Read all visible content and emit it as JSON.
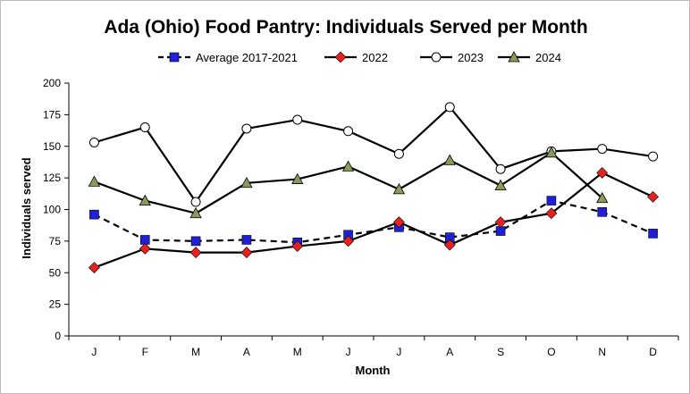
{
  "chart_data": {
    "type": "line",
    "title": "Ada (Ohio) Food Pantry: Individuals Served per Month",
    "xlabel": "Month",
    "ylabel": "Individuals served",
    "categories": [
      "J",
      "F",
      "M",
      "A",
      "M",
      "J",
      "J",
      "A",
      "S",
      "O",
      "N",
      "D"
    ],
    "ylim": [
      0,
      200
    ],
    "yticks": [
      0,
      25,
      50,
      75,
      100,
      125,
      150,
      175,
      200
    ],
    "grid": false,
    "legend_position": "top",
    "series": [
      {
        "name": "Average 2017-2021",
        "marker": "square",
        "color": "#1f1fd6",
        "line_style": "dashed",
        "values": [
          96,
          76,
          75,
          76,
          74,
          80,
          86,
          78,
          83,
          107,
          98,
          81
        ]
      },
      {
        "name": "2022",
        "marker": "diamond",
        "color": "#e8211f",
        "line_style": "solid",
        "values": [
          54,
          69,
          66,
          66,
          71,
          75,
          90,
          72,
          90,
          97,
          129,
          110
        ]
      },
      {
        "name": "2023",
        "marker": "circle",
        "color": "#ffffff",
        "line_style": "solid",
        "values": [
          153,
          165,
          106,
          164,
          171,
          162,
          144,
          181,
          132,
          146,
          148,
          142
        ]
      },
      {
        "name": "2024",
        "marker": "triangle",
        "color": "#8a9a5b",
        "line_style": "solid",
        "values": [
          122,
          107,
          97,
          121,
          124,
          134,
          116,
          139,
          119,
          145,
          109,
          null
        ]
      }
    ]
  }
}
